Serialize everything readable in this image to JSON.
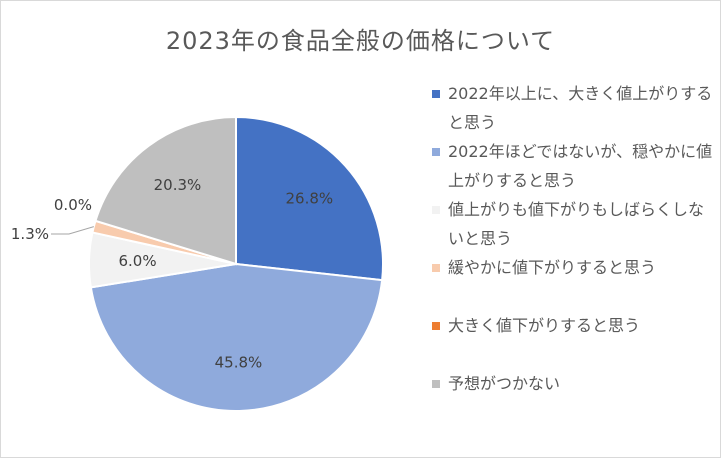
{
  "chart_data": {
    "type": "pie",
    "title": "2023年の食品全般の価格について",
    "legend_position": "right",
    "slices": [
      {
        "label": "2022年以上に、大きく値上がりすると思う",
        "value": 26.8,
        "display": "26.8%",
        "color": "#4472c4"
      },
      {
        "label": "2022年ほどではないが、穏やかに値上がりすると思う",
        "value": 45.8,
        "display": "45.8%",
        "color": "#8faadc"
      },
      {
        "label": "値上がりも値下がりもしばらくしないと思う",
        "value": 6.0,
        "display": "6.0%",
        "color": "#f2f2f2"
      },
      {
        "label": "緩やかに値下がりすると思う",
        "value": 1.3,
        "display": "1.3%",
        "color": "#f8cbad"
      },
      {
        "label": "大きく値下がりすると思う",
        "value": 0.0,
        "display": "0.0%",
        "color": "#ed7d31"
      },
      {
        "label": "予想がつかない",
        "value": 20.3,
        "display": "20.3%",
        "color": "#bfbfbf"
      }
    ]
  }
}
